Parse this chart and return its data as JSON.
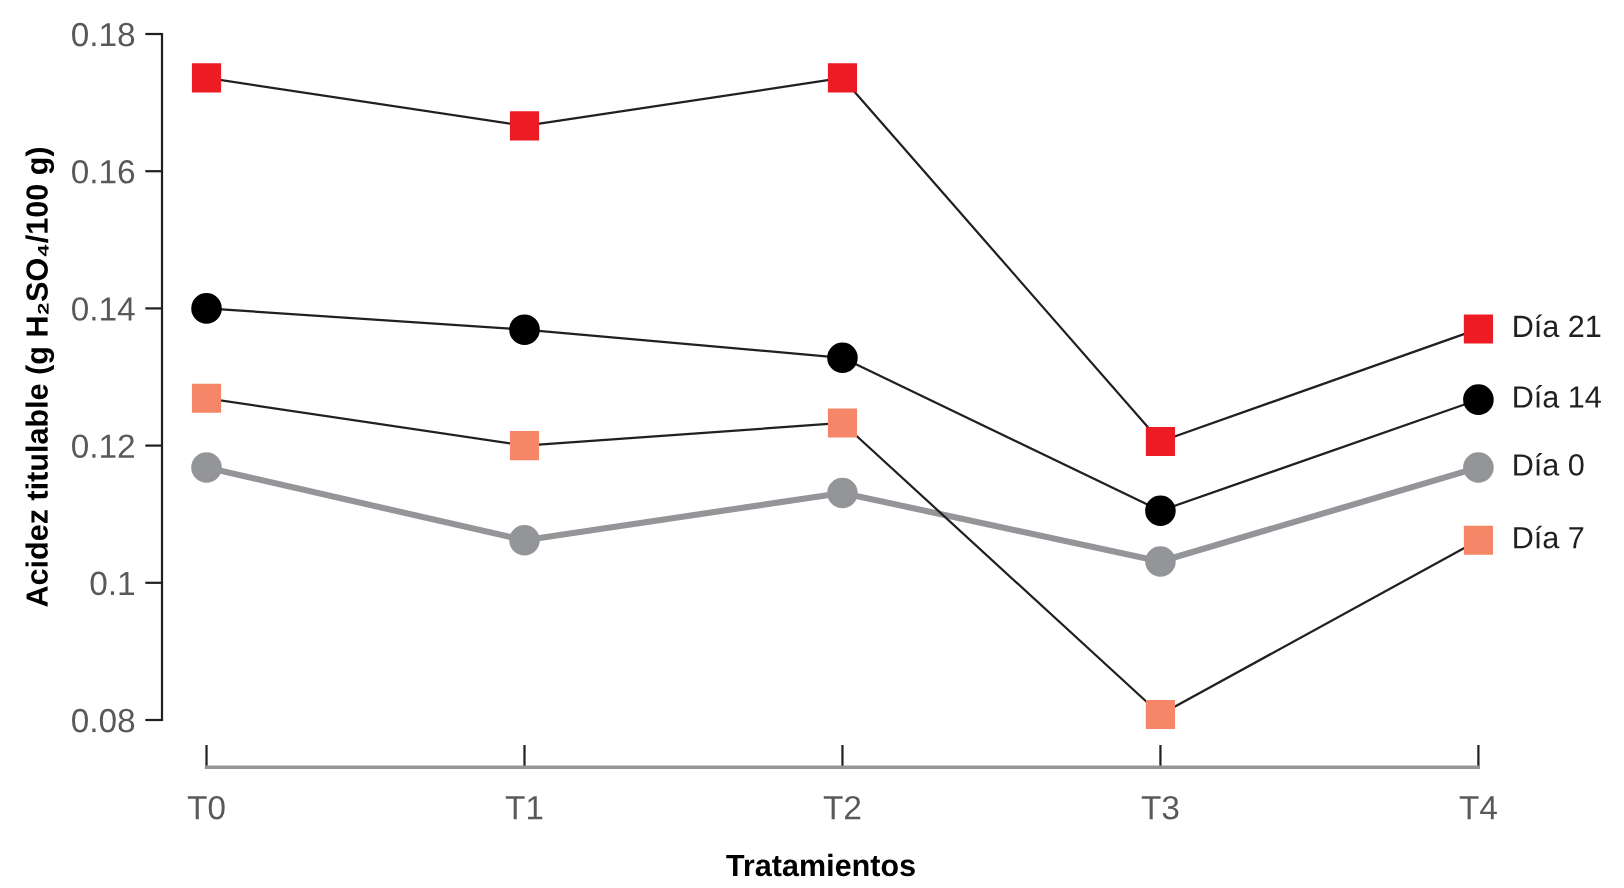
{
  "chart_data": {
    "type": "line",
    "xlabel": "Tratamientos",
    "ylabel": "Acidez titulable (g H₂SO₄/100 g)",
    "categories": [
      "T0",
      "T1",
      "T2",
      "T3",
      "T4"
    ],
    "ylim": [
      0.08,
      0.18
    ],
    "yticks": [
      {
        "value": 0.08,
        "label": "0.08"
      },
      {
        "value": 0.1,
        "label": "0.1"
      },
      {
        "value": 0.12,
        "label": "0.12"
      },
      {
        "value": 0.14,
        "label": "0.14"
      },
      {
        "value": 0.16,
        "label": "0.16"
      },
      {
        "value": 0.18,
        "label": "0.18"
      }
    ],
    "grid": false,
    "legend": false,
    "series": [
      {
        "name": "Día 21",
        "color": "#ed1c24",
        "marker": "square",
        "values": [
          0.1736,
          0.1666,
          0.1736,
          0.1206,
          0.137
        ]
      },
      {
        "name": "Día 14",
        "color": "#000000",
        "marker": "circle",
        "values": [
          0.14,
          0.1369,
          0.1328,
          0.1105,
          0.1267
        ]
      },
      {
        "name": "Día 0",
        "color": "#939598",
        "marker": "circle",
        "values": [
          0.1168,
          0.1062,
          0.1131,
          0.1031,
          0.1168
        ]
      },
      {
        "name": "Día 7",
        "color": "#f58667",
        "marker": "square",
        "values": [
          0.1269,
          0.12,
          0.1233,
          0.0808,
          0.1062
        ]
      }
    ]
  }
}
